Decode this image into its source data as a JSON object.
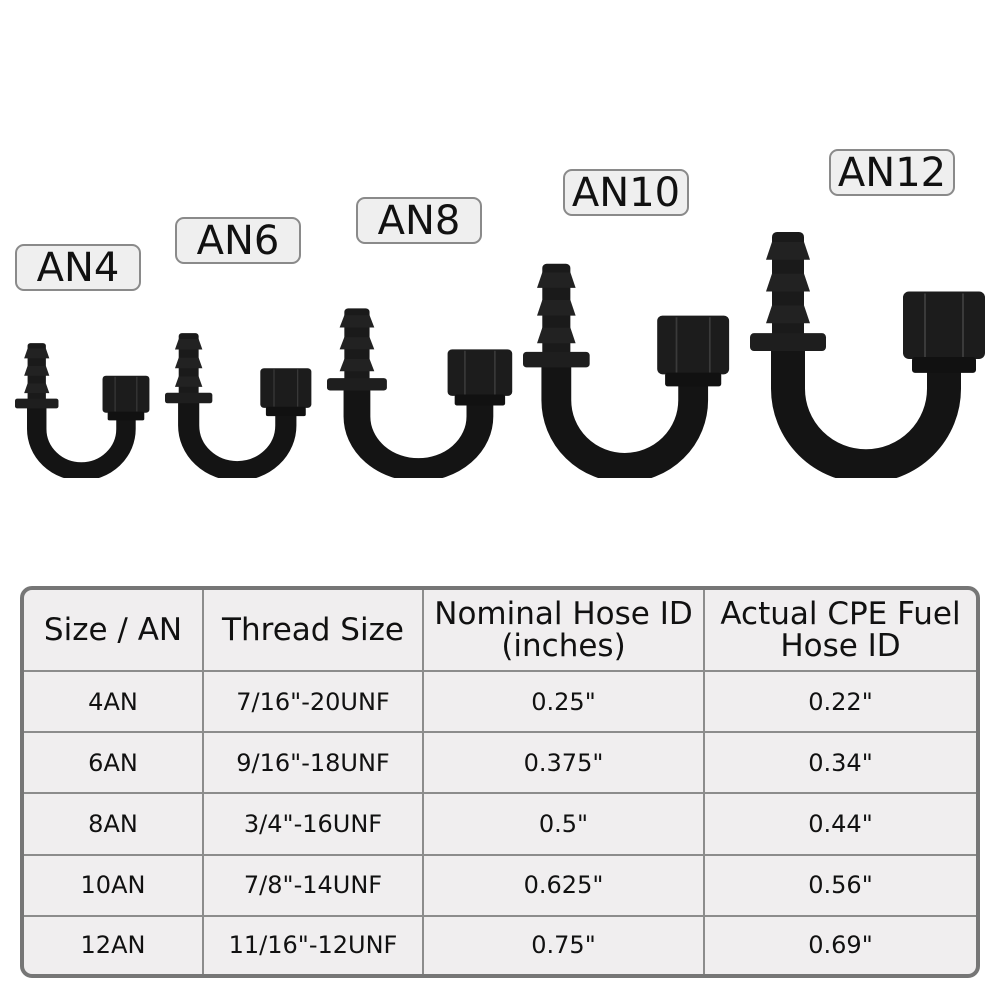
{
  "labels": [
    "AN4",
    "AN6",
    "AN8",
    "AN10",
    "AN12"
  ],
  "table": {
    "headers": [
      "Size / AN",
      "Thread Size",
      "Nominal Hose ID (inches)",
      "Actual CPE Fuel Hose ID"
    ],
    "rows": [
      [
        "4AN",
        "7/16\"-20UNF",
        "0.25\"",
        "0.22\""
      ],
      [
        "6AN",
        "9/16\"-18UNF",
        "0.375\"",
        "0.34\""
      ],
      [
        "8AN",
        "3/4\"-16UNF",
        "0.5\"",
        "0.44\""
      ],
      [
        "10AN",
        "7/8\"-14UNF",
        "0.625\"",
        "0.56\""
      ],
      [
        "12AN",
        "11/16\"-12UNF",
        "0.75\"",
        "0.69\""
      ]
    ]
  },
  "colors": {
    "fitting": "#111111",
    "table_bg": "#f0eeef",
    "border": "#767676"
  }
}
